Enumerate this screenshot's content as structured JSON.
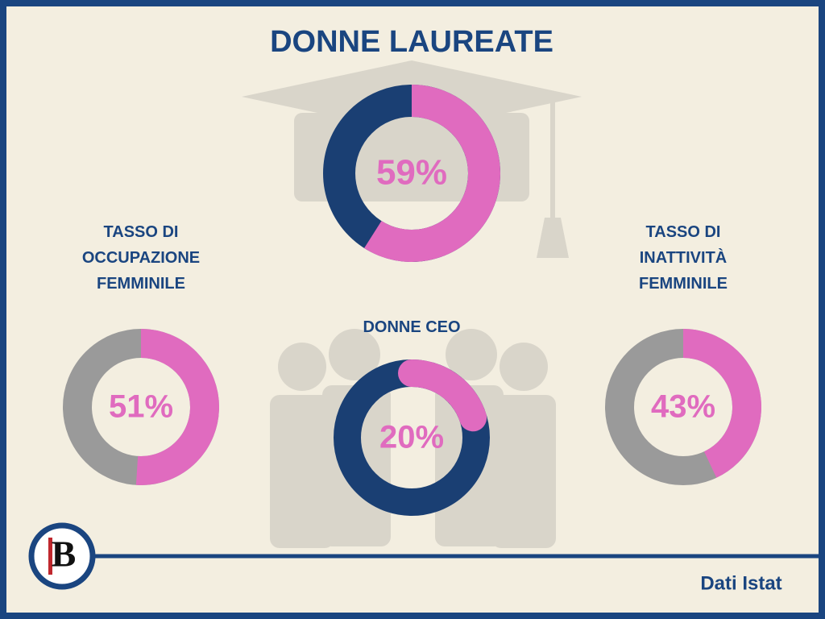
{
  "chart_data": [
    {
      "type": "donut",
      "title": "DONNE LAUREATE",
      "values": [
        59
      ],
      "value_labels": [
        "59%"
      ],
      "ylim": [
        0,
        100
      ],
      "color": "#e06bbf",
      "track_color": "#1a3f73"
    },
    {
      "type": "donut",
      "title": "TASSO DI OCCUPAZIONE FEMMINILE",
      "values": [
        51
      ],
      "value_labels": [
        "51%"
      ],
      "ylim": [
        0,
        100
      ],
      "color": "#e06bbf",
      "track_color": "#9a9a9a"
    },
    {
      "type": "donut",
      "title": "DONNE CEO",
      "values": [
        20
      ],
      "value_labels": [
        "20%"
      ],
      "ylim": [
        0,
        100
      ],
      "color": "#e06bbf",
      "track_color": "#1a3f73"
    },
    {
      "type": "donut",
      "title": "TASSO DI INATTIVITÀ FEMMINILE",
      "values": [
        43
      ],
      "value_labels": [
        "43%"
      ],
      "ylim": [
        0,
        100
      ],
      "color": "#e06bbf",
      "track_color": "#9a9a9a"
    }
  ],
  "footer": {
    "logo": "B",
    "source": "Dati Istat"
  }
}
